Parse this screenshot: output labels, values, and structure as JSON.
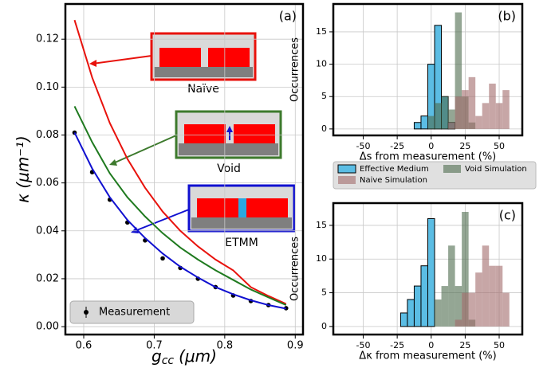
{
  "chart_data": [
    {
      "type": "line",
      "panel_label": "(a)",
      "ylabel": "κ (μm⁻¹)",
      "xlabel": "g",
      "xlabel_sub": "cc",
      "xlabel_unit": "(μm)",
      "inset_labels": [
        "Naïve",
        "Void",
        "ETMM"
      ],
      "x": [
        0.587,
        0.612,
        0.637,
        0.662,
        0.687,
        0.712,
        0.737,
        0.762,
        0.787,
        0.812,
        0.837,
        0.862,
        0.887
      ],
      "series": [
        {
          "name": "Measurement",
          "color": "#000000",
          "values": [
            0.081,
            0.0645,
            0.053,
            0.0435,
            0.036,
            0.0285,
            0.0245,
            0.02,
            0.0165,
            0.013,
            0.0107,
            0.009,
            0.0077
          ]
        },
        {
          "color": "#e8120c",
          "values": [
            0.128,
            0.104,
            0.085,
            0.07,
            0.058,
            0.048,
            0.04,
            0.0335,
            0.028,
            0.0235,
            0.0165,
            0.0128,
            0.0095
          ]
        },
        {
          "color": "#1f7a1f",
          "values": [
            0.092,
            0.077,
            0.064,
            0.054,
            0.046,
            0.039,
            0.033,
            0.028,
            0.0235,
            0.0195,
            0.0155,
            0.0122,
            0.009
          ]
        },
        {
          "color": "#1010d0",
          "values": [
            0.081,
            0.066,
            0.054,
            0.0445,
            0.037,
            0.0305,
            0.025,
            0.0205,
            0.0165,
            0.0135,
            0.011,
            0.009,
            0.0075
          ]
        }
      ],
      "xlim": [
        0.574,
        0.911
      ],
      "ylim": [
        -0.0033,
        0.1347
      ],
      "xticks": [
        0.6,
        0.7,
        0.8,
        0.9
      ],
      "yticks": [
        {
          "value": 0,
          "label": "0.00"
        },
        {
          "value": 0.02,
          "label": "0.02"
        },
        {
          "value": 0.04,
          "label": "0.04"
        },
        {
          "value": 0.06,
          "label": "0.06"
        },
        {
          "value": 0.08,
          "label": "0.08"
        },
        {
          "value": 0.1,
          "label": "0.10"
        },
        {
          "value": 0.12,
          "label": "0.12"
        }
      ],
      "grid": true
    },
    {
      "type": "histogram",
      "panel_label": "(b)",
      "xlabel": "Δs from measurement (%)",
      "ylabel": "Occurrences",
      "series": [
        {
          "name": "Effective Medium",
          "color": "#5bbde4",
          "bins": [
            -12.5,
            -7.5,
            -2.5,
            2.5,
            7.5,
            12.5,
            17.5
          ],
          "values": [
            1,
            2,
            10,
            16,
            5,
            1
          ]
        },
        {
          "name": "Naive Simulation",
          "color": "#a26a6a",
          "bins": [
            12.5,
            17.5,
            22.5,
            27.5,
            32.5,
            37.5,
            42.5,
            47.5,
            52.5,
            57.5
          ],
          "values": [
            1,
            5,
            6,
            8,
            2,
            4,
            7,
            4,
            6
          ]
        },
        {
          "name": "Void Simulation",
          "color": "#4d6b4d",
          "bins": [
            -2.5,
            2.5,
            7.5,
            12.5,
            17.5,
            22.5,
            27.5,
            32.5
          ],
          "values": [
            2,
            4,
            5,
            3,
            18,
            5,
            1
          ]
        }
      ],
      "xlim": [
        -72,
        67
      ],
      "ylim": [
        -1,
        19.3
      ],
      "xticks": [
        -50,
        -25,
        0,
        25,
        50
      ],
      "yticks": [
        0,
        5,
        10,
        15
      ],
      "grid": true
    },
    {
      "type": "histogram",
      "panel_label": "(c)",
      "xlabel": "Δκ from measurement (%)",
      "ylabel": "Occurrences",
      "series": [
        {
          "color": "#5bbde4",
          "bins": [
            -22.5,
            -17.5,
            -12.5,
            -7.5,
            -2.5,
            2.5
          ],
          "values": [
            2,
            4,
            6,
            9,
            16
          ]
        },
        {
          "color": "#a26a6a",
          "bins": [
            17.5,
            22.5,
            27.5,
            32.5,
            37.5,
            42.5,
            47.5,
            52.5,
            57.5
          ],
          "values": [
            1,
            5,
            5,
            8,
            12,
            9,
            9,
            5
          ]
        },
        {
          "color": "#4d6b4d",
          "bins": [
            2.5,
            7.5,
            12.5,
            17.5,
            22.5,
            27.5,
            32.5
          ],
          "values": [
            4,
            6,
            12,
            6,
            17,
            1
          ]
        }
      ],
      "xlim": [
        -72,
        67
      ],
      "ylim": [
        -1.2,
        18.3
      ],
      "xticks": [
        -50,
        -25,
        0,
        25,
        50
      ],
      "yticks": [
        0,
        5,
        10,
        15
      ],
      "grid": true
    }
  ]
}
